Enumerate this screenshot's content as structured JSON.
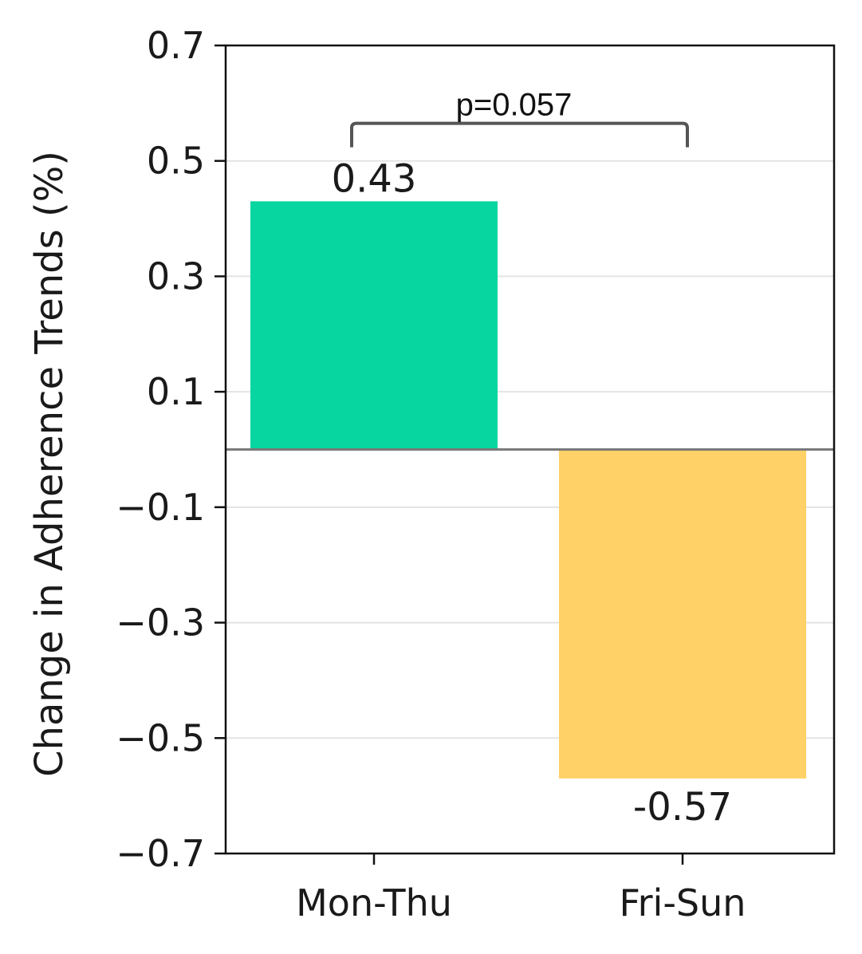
{
  "chart_data": {
    "type": "bar",
    "categories": [
      "Mon-Thu",
      "Fri-Sun"
    ],
    "values": [
      0.43,
      -0.57
    ],
    "value_labels": [
      "0.43",
      "-0.57"
    ],
    "colors": [
      "#07d6a0",
      "#ffd166"
    ],
    "ylabel": "Change in Adherence Trends (%)",
    "xlabel": "",
    "title": "",
    "ylim": [
      -0.7,
      0.7
    ],
    "yticks": [
      0.7,
      0.5,
      0.3,
      0.1,
      -0.1,
      -0.3,
      -0.5,
      -0.7
    ],
    "ytick_labels": [
      "0.7",
      "0.5",
      "0.3",
      "0.1",
      "−0.1",
      "−0.3",
      "−0.5",
      "−0.7"
    ],
    "grid": true,
    "zero_line": true,
    "annotation": {
      "text": "p=0.057",
      "from_category": 0,
      "to_category": 1,
      "y": 0.565
    }
  }
}
